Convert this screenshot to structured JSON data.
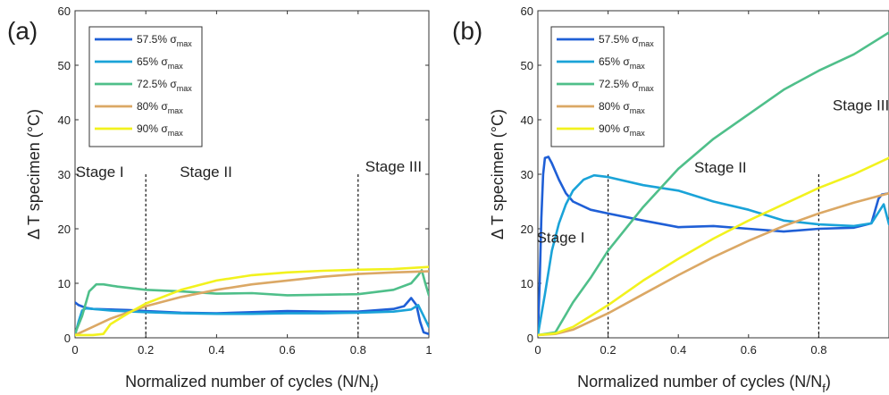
{
  "chart_data": [
    {
      "type": "line",
      "panel_label": "(a)",
      "xlabel": "Normalized number of cycles (N/N",
      "xlabel_sub": "f",
      "xlabel_close": ")",
      "ylabel": "Δ T specimen (°C)",
      "xlim": [
        0,
        1
      ],
      "ylim": [
        0,
        60
      ],
      "xticks": [
        "0",
        "0.2",
        "0.4",
        "0.6",
        "0.8",
        "1"
      ],
      "yticks": [
        "0",
        "10",
        "20",
        "30",
        "40",
        "50",
        "60"
      ],
      "legend_position": "top-left",
      "stage_lines": [
        0.2,
        0.8
      ],
      "stage_labels": [
        {
          "text": "Stage I",
          "x": 0.07,
          "y": 29.5
        },
        {
          "text": "Stage II",
          "x": 0.37,
          "y": 29.5
        },
        {
          "text": "Stage III",
          "x": 0.9,
          "y": 30.5
        }
      ],
      "series": [
        {
          "name": "57.5% σ",
          "name_sub": "max",
          "color": "#1f5fd6",
          "x": [
            0,
            0.01,
            0.03,
            0.05,
            0.1,
            0.15,
            0.2,
            0.3,
            0.4,
            0.5,
            0.6,
            0.7,
            0.8,
            0.9,
            0.93,
            0.95,
            0.965,
            0.975,
            0.985,
            1.0
          ],
          "y": [
            6.5,
            6.0,
            5.5,
            5.3,
            5.2,
            5.1,
            4.9,
            4.6,
            4.5,
            4.7,
            4.9,
            4.8,
            4.8,
            5.3,
            5.8,
            7.3,
            6.0,
            3.0,
            1.0,
            0.7
          ]
        },
        {
          "name": "65%  σ",
          "name_sub": "max",
          "color": "#1aa3d8",
          "x": [
            0,
            0.01,
            0.02,
            0.03,
            0.05,
            0.1,
            0.2,
            0.3,
            0.4,
            0.5,
            0.6,
            0.7,
            0.8,
            0.9,
            0.95,
            0.97,
            0.985,
            1.0
          ],
          "y": [
            0.5,
            3.0,
            5.0,
            5.4,
            5.3,
            5.0,
            4.7,
            4.5,
            4.4,
            4.4,
            4.5,
            4.5,
            4.6,
            4.8,
            5.2,
            6.0,
            4.0,
            2.0
          ]
        },
        {
          "name": "72.5% σ",
          "name_sub": "max",
          "color": "#4fbf8a",
          "x": [
            0,
            0.02,
            0.04,
            0.06,
            0.08,
            0.12,
            0.2,
            0.3,
            0.4,
            0.5,
            0.6,
            0.7,
            0.8,
            0.9,
            0.95,
            0.97,
            0.98,
            0.99,
            1.0
          ],
          "y": [
            0.8,
            4.0,
            8.5,
            9.8,
            9.8,
            9.4,
            8.8,
            8.5,
            8.1,
            8.2,
            7.8,
            7.9,
            8.0,
            8.8,
            10.0,
            11.5,
            12.4,
            10.0,
            7.8
          ]
        },
        {
          "name": "80% σ",
          "name_sub": "max",
          "color": "#dba865",
          "x": [
            0,
            0.05,
            0.1,
            0.2,
            0.3,
            0.4,
            0.5,
            0.6,
            0.7,
            0.8,
            0.9,
            1.0
          ],
          "y": [
            0.5,
            2.0,
            3.5,
            5.8,
            7.5,
            8.8,
            9.8,
            10.5,
            11.2,
            11.7,
            12.0,
            12.2
          ]
        },
        {
          "name": "90% σ",
          "name_sub": "max",
          "color": "#f2f21e",
          "x": [
            0,
            0.05,
            0.08,
            0.1,
            0.15,
            0.2,
            0.3,
            0.4,
            0.5,
            0.6,
            0.7,
            0.8,
            0.9,
            1.0
          ],
          "y": [
            0.5,
            0.5,
            0.7,
            2.5,
            4.5,
            6.3,
            8.8,
            10.5,
            11.5,
            12.0,
            12.3,
            12.5,
            12.6,
            13.0
          ]
        }
      ]
    },
    {
      "type": "line",
      "panel_label": "(b)",
      "xlabel": "Normalized number of cycles (N/N",
      "xlabel_sub": "f",
      "xlabel_close": ")",
      "ylabel": "Δ T specimen (°C)",
      "xlim": [
        0,
        1
      ],
      "ylim": [
        0,
        60
      ],
      "xticks": [
        "0",
        "0.2",
        "0.4",
        "0.6",
        "0.8"
      ],
      "yticks": [
        "0",
        "10",
        "20",
        "30",
        "40",
        "50",
        "60"
      ],
      "legend_position": "top-left",
      "stage_lines": [
        0.2,
        0.8
      ],
      "stage_labels": [
        {
          "text": "Stage I",
          "x": 0.065,
          "y": 17.5
        },
        {
          "text": "Stage II",
          "x": 0.52,
          "y": 30.3
        },
        {
          "text": "Stage III",
          "x": 0.92,
          "y": 41.7
        }
      ],
      "series": [
        {
          "name": "57.5% σ",
          "name_sub": "max",
          "color": "#1f5fd6",
          "x": [
            0,
            0.005,
            0.01,
            0.015,
            0.02,
            0.03,
            0.04,
            0.06,
            0.08,
            0.1,
            0.15,
            0.2,
            0.3,
            0.4,
            0.5,
            0.6,
            0.7,
            0.8,
            0.9,
            0.95,
            0.97,
            0.98,
            1.0
          ],
          "y": [
            0.5,
            10.0,
            22.0,
            30.0,
            33.0,
            33.2,
            32.0,
            29.0,
            26.5,
            25.0,
            23.5,
            22.8,
            21.5,
            20.3,
            20.5,
            20.0,
            19.5,
            20.0,
            20.2,
            21.0,
            25.5,
            26.3,
            26.5
          ]
        },
        {
          "name": "65%  σ",
          "name_sub": "max",
          "color": "#1aa3d8",
          "x": [
            0,
            0.02,
            0.04,
            0.06,
            0.08,
            0.1,
            0.13,
            0.16,
            0.2,
            0.3,
            0.4,
            0.5,
            0.6,
            0.7,
            0.8,
            0.9,
            0.95,
            0.97,
            0.985,
            1.0
          ],
          "y": [
            0.5,
            8.0,
            16.0,
            21.0,
            24.5,
            27.0,
            29.0,
            29.8,
            29.5,
            28.0,
            27.0,
            25.0,
            23.5,
            21.5,
            20.8,
            20.5,
            21.0,
            23.0,
            24.5,
            20.8
          ]
        },
        {
          "name": "72.5% σ",
          "name_sub": "max",
          "color": "#4fbf8a",
          "x": [
            0,
            0.05,
            0.1,
            0.15,
            0.2,
            0.3,
            0.4,
            0.5,
            0.6,
            0.7,
            0.8,
            0.9,
            1.0
          ],
          "y": [
            0.5,
            1.0,
            6.5,
            11.0,
            16.0,
            24.0,
            31.0,
            36.5,
            41.0,
            45.5,
            49.0,
            52.0,
            56.0
          ]
        },
        {
          "name": "80% σ",
          "name_sub": "max",
          "color": "#dba865",
          "x": [
            0,
            0.05,
            0.1,
            0.15,
            0.2,
            0.3,
            0.4,
            0.5,
            0.6,
            0.7,
            0.8,
            0.9,
            1.0
          ],
          "y": [
            0.5,
            0.7,
            1.5,
            3.0,
            4.5,
            8.0,
            11.5,
            14.8,
            17.8,
            20.5,
            22.8,
            24.8,
            26.5
          ]
        },
        {
          "name": "90% σ",
          "name_sub": "max",
          "color": "#f2f21e",
          "x": [
            0,
            0.05,
            0.1,
            0.15,
            0.2,
            0.3,
            0.4,
            0.5,
            0.6,
            0.7,
            0.8,
            0.9,
            1.0
          ],
          "y": [
            0.5,
            0.8,
            2.0,
            4.0,
            6.0,
            10.5,
            14.5,
            18.2,
            21.5,
            24.5,
            27.5,
            30.0,
            33.0
          ]
        }
      ]
    }
  ]
}
